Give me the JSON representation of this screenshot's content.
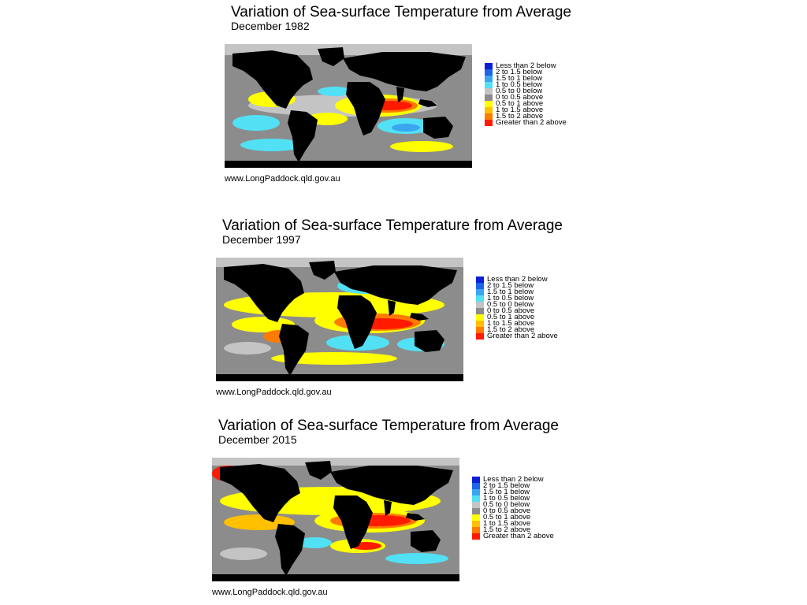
{
  "panels": [
    {
      "title": "Variation of Sea-surface Temperature from Average",
      "subtitle": "December 1982",
      "source": "www.LongPaddock.qld.gov.au"
    },
    {
      "title": "Variation of Sea-surface Temperature from Average",
      "subtitle": "December 1997",
      "source": "www.LongPaddock.qld.gov.au"
    },
    {
      "title": "Variation of Sea-surface Temperature from Average",
      "subtitle": "December 2015",
      "source": "www.LongPaddock.qld.gov.au"
    }
  ],
  "legend": [
    {
      "label": "Less than 2 below",
      "color": "#0a1fd6"
    },
    {
      "label": "2 to 1.5 below",
      "color": "#1e64e6"
    },
    {
      "label": "1.5 to 1 below",
      "color": "#3aa6f0"
    },
    {
      "label": "1 to 0.5 below",
      "color": "#52e0f5"
    },
    {
      "label": "0.5 to 0 below",
      "color": "#c4c4c4"
    },
    {
      "label": "0 to 0.5 above",
      "color": "#8c8c8c"
    },
    {
      "label": "0.5 to 1 above",
      "color": "#ffff00"
    },
    {
      "label": "1 to 1.5 above",
      "color": "#ffc000"
    },
    {
      "label": "1.5 to 2 above",
      "color": "#ff7a00"
    },
    {
      "label": "Greater than 2 above",
      "color": "#ff1a00"
    }
  ],
  "colors": {
    "land": "#000000",
    "ice": "#c8c8c8"
  }
}
